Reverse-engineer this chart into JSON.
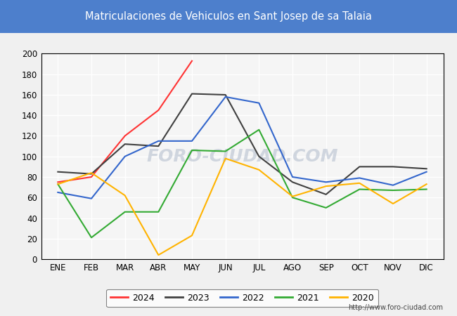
{
  "title": "Matriculaciones de Vehiculos en Sant Josep de sa Talaia",
  "title_bg_color": "#4D7FCC",
  "title_text_color": "#FFFFFF",
  "months": [
    "ENE",
    "FEB",
    "MAR",
    "ABR",
    "MAY",
    "JUN",
    "JUL",
    "AGO",
    "SEP",
    "OCT",
    "NOV",
    "DIC"
  ],
  "series": {
    "2024": {
      "color": "#FF3333",
      "data": [
        75,
        80,
        120,
        145,
        193,
        null,
        null,
        null,
        null,
        null,
        null,
        null
      ]
    },
    "2023": {
      "color": "#404040",
      "data": [
        85,
        83,
        112,
        110,
        161,
        160,
        100,
        75,
        63,
        90,
        90,
        88
      ]
    },
    "2022": {
      "color": "#3366CC",
      "data": [
        65,
        59,
        100,
        115,
        115,
        158,
        152,
        80,
        75,
        79,
        72,
        85
      ]
    },
    "2021": {
      "color": "#33AA33",
      "data": [
        73,
        21,
        46,
        46,
        106,
        105,
        126,
        60,
        50,
        68,
        67,
        68
      ]
    },
    "2020": {
      "color": "#FFB300",
      "data": [
        73,
        84,
        62,
        4,
        23,
        98,
        87,
        61,
        71,
        74,
        54,
        73
      ]
    }
  },
  "legend_order": [
    "2024",
    "2023",
    "2022",
    "2021",
    "2020"
  ],
  "ylim": [
    0,
    200
  ],
  "yticks": [
    0,
    20,
    40,
    60,
    80,
    100,
    120,
    140,
    160,
    180,
    200
  ],
  "watermark": "FORO-CIUDAD.COM",
  "url": "http://www.foro-ciudad.com",
  "outer_bg_color": "#4D7FCC",
  "inner_bg_color": "#F0F0F0",
  "plot_bg_color": "#F5F5F5",
  "grid_color": "#FFFFFF",
  "frame_bg": "#DCDCDC"
}
